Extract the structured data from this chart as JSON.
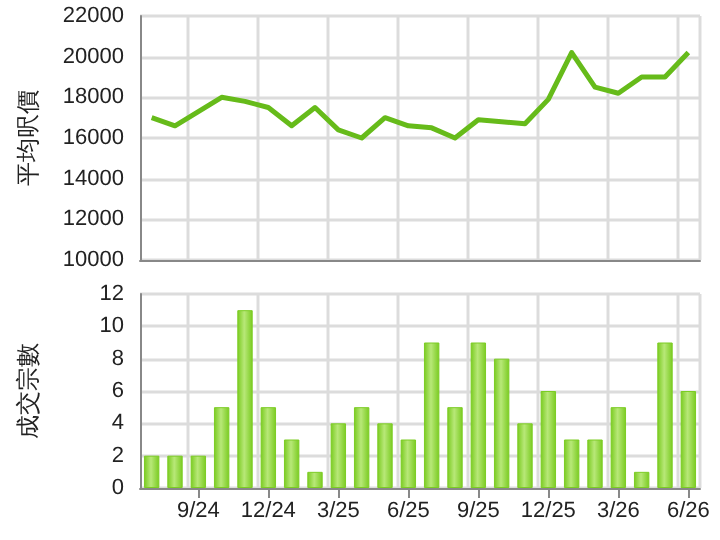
{
  "chart_data": [
    {
      "type": "line",
      "ylabel": "平均呎價",
      "categories": [
        null,
        null,
        null,
        null,
        null,
        null,
        null,
        null,
        null,
        null,
        null,
        null,
        null,
        null,
        null,
        null,
        null,
        null,
        null,
        null,
        null,
        null,
        null,
        null
      ],
      "values": [
        17000,
        16600,
        17300,
        18000,
        17800,
        17500,
        16600,
        17500,
        16400,
        16000,
        17000,
        16600,
        16500,
        16000,
        16900,
        16800,
        16700,
        17900,
        20200,
        18500,
        18200,
        19000,
        19000,
        20200
      ],
      "color": "#66bb1a",
      "ylim": [
        10000,
        22000
      ],
      "yticks": [
        10000,
        12000,
        14000,
        16000,
        18000,
        20000,
        22000
      ],
      "grid": true,
      "marker": "none",
      "tick_labels": "y"
    },
    {
      "type": "bar",
      "ylabel": "成交宗數",
      "categories": [
        null,
        null,
        "9/24",
        null,
        null,
        "12/24",
        null,
        null,
        "3/25",
        null,
        null,
        "6/25",
        null,
        null,
        "9/25",
        null,
        null,
        "12/25",
        null,
        null,
        "3/26",
        null,
        null,
        "6/26"
      ],
      "values": [
        2,
        2,
        2,
        5,
        11,
        5,
        3,
        1,
        4,
        5,
        4,
        3,
        9,
        5,
        9,
        8,
        4,
        6,
        3,
        3,
        5,
        1,
        9,
        6
      ],
      "color": "#7ccc24",
      "ylim": [
        0,
        12
      ],
      "yticks": [
        0,
        2,
        4,
        6,
        8,
        10,
        12
      ],
      "grid": true
    }
  ]
}
